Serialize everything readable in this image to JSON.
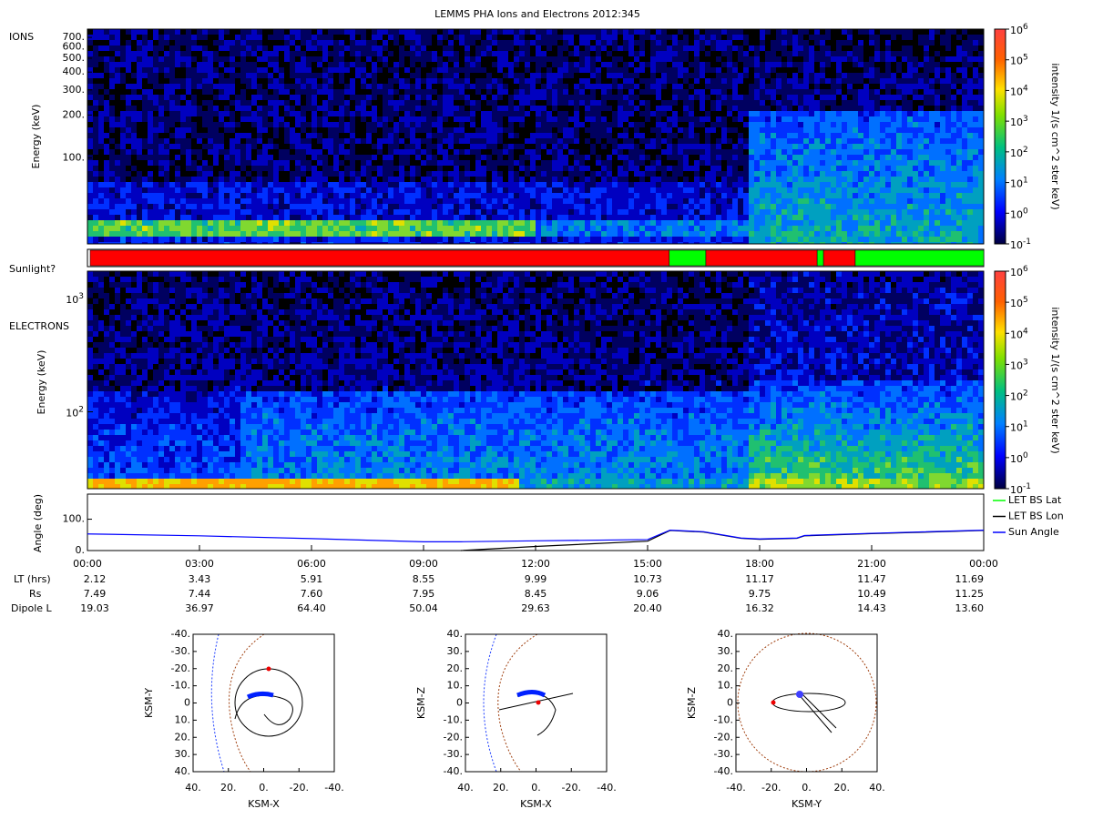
{
  "title": "LEMMS PHA Ions and Electrons  2012:345",
  "ions": {
    "label": "IONS",
    "ylabel": "Energy (keV)",
    "ylim": [
      25,
      800
    ],
    "yticks": [
      {
        "value": 700,
        "label": "700."
      },
      {
        "value": 600,
        "label": "600."
      },
      {
        "value": 500,
        "label": "500."
      },
      {
        "value": 400,
        "label": "400."
      },
      {
        "value": 300,
        "label": "300."
      },
      {
        "value": 200,
        "label": "200."
      },
      {
        "value": 100,
        "label": "100."
      }
    ],
    "colorbar": {
      "label": "intensity 1/(s cm^2 ster keV)",
      "ylim": [
        0.1,
        1000000
      ],
      "ticks": [
        {
          "value": 0.1,
          "base": "10",
          "exp": "-1"
        },
        {
          "value": 1,
          "base": "10",
          "exp": "0"
        },
        {
          "value": 10,
          "base": "10",
          "exp": "1"
        },
        {
          "value": 100,
          "base": "10",
          "exp": "2"
        },
        {
          "value": 1000,
          "base": "10",
          "exp": "3"
        },
        {
          "value": 10000,
          "base": "10",
          "exp": "4"
        },
        {
          "value": 100000,
          "base": "10",
          "exp": "5"
        },
        {
          "value": 1000000,
          "base": "10",
          "exp": "6"
        }
      ]
    }
  },
  "sunlight": {
    "label": "Sunlight?",
    "segments": [
      {
        "start": 0,
        "end": 15.58,
        "color": "#ff0000"
      },
      {
        "start": 15.58,
        "end": 16.56,
        "color": "#00ff00"
      },
      {
        "start": 16.56,
        "end": 19.54,
        "color": "#ff0000"
      },
      {
        "start": 19.54,
        "end": 19.71,
        "color": "#00ff00"
      },
      {
        "start": 19.71,
        "end": 20.56,
        "color": "#ff0000"
      },
      {
        "start": 20.56,
        "end": 24,
        "color": "#00ff00"
      }
    ]
  },
  "electrons": {
    "label": "ELECTRONS",
    "ylabel": "Energy (keV)",
    "ylim": [
      21,
      1740
    ],
    "yticks": [
      {
        "value": 100,
        "base": "10",
        "exp": "2"
      },
      {
        "value": 1000,
        "base": "10",
        "exp": "3"
      }
    ],
    "colorbar": {
      "label": "intensity 1/(s cm^2 ster keV)",
      "ylim": [
        0.1,
        1000000
      ],
      "ticks": [
        {
          "value": 0.1,
          "base": "10",
          "exp": "-1"
        },
        {
          "value": 1,
          "base": "10",
          "exp": "0"
        },
        {
          "value": 10,
          "base": "10",
          "exp": "1"
        },
        {
          "value": 100,
          "base": "10",
          "exp": "2"
        },
        {
          "value": 1000,
          "base": "10",
          "exp": "3"
        },
        {
          "value": 10000,
          "base": "10",
          "exp": "4"
        },
        {
          "value": 100000,
          "base": "10",
          "exp": "5"
        },
        {
          "value": 1000000,
          "base": "10",
          "exp": "6"
        }
      ]
    }
  },
  "angle": {
    "ylabel": "Angle (deg)",
    "ylim": [
      0,
      180
    ],
    "yticks": [
      {
        "value": 0,
        "label": "0."
      },
      {
        "value": 100,
        "label": "100."
      }
    ],
    "x": [
      0,
      3,
      6,
      9,
      10,
      12,
      15,
      15.6,
      16.5,
      17.5,
      18,
      19,
      19.2,
      21,
      24
    ],
    "series": [
      {
        "name": "LET BS Lat",
        "color": "#00ff00",
        "values": [
          null,
          null,
          null,
          null,
          null,
          null,
          null,
          null,
          null,
          null,
          null,
          null,
          null,
          null,
          null
        ]
      },
      {
        "name": "LET BS Lon",
        "color": "#000000",
        "values": [
          null,
          null,
          null,
          null,
          0,
          13,
          30,
          64,
          59,
          39,
          36,
          39,
          47,
          54,
          64
        ]
      },
      {
        "name": "Sun Angle",
        "color": "#0000ff",
        "values": [
          53,
          47,
          38,
          28,
          28,
          31,
          35,
          65,
          60,
          40,
          37,
          40,
          48,
          55,
          65
        ]
      }
    ]
  },
  "xlim": [
    0,
    24
  ],
  "xticks": [
    {
      "value": 0,
      "label": "00:00"
    },
    {
      "value": 3,
      "label": "03:00"
    },
    {
      "value": 6,
      "label": "06:00"
    },
    {
      "value": 9,
      "label": "09:00"
    },
    {
      "value": 12,
      "label": "12:00"
    },
    {
      "value": 15,
      "label": "15:00"
    },
    {
      "value": 18,
      "label": "18:00"
    },
    {
      "value": 21,
      "label": "21:00"
    },
    {
      "value": 24,
      "label": "00:00"
    }
  ],
  "rows": [
    {
      "label": "LT (hrs)",
      "values": [
        "2.12",
        "3.43",
        "5.91",
        "8.55",
        "9.99",
        "10.73",
        "11.17",
        "11.47",
        "11.69"
      ]
    },
    {
      "label": "Rs",
      "values": [
        "7.49",
        "7.44",
        "7.60",
        "7.95",
        "8.45",
        "9.06",
        "9.75",
        "10.49",
        "11.25"
      ]
    },
    {
      "label": "Dipole L",
      "values": [
        "19.03",
        "36.97",
        "64.40",
        "50.04",
        "29.63",
        "20.40",
        "16.32",
        "14.43",
        "13.60"
      ]
    }
  ],
  "orbits": [
    {
      "xlabel": "KSM-X",
      "ylabel": "KSM-Y",
      "xticks": [
        {
          "value": 40,
          "label": "40."
        },
        {
          "value": 20,
          "label": "20."
        },
        {
          "value": 0,
          "label": "0."
        },
        {
          "value": -20,
          "label": "-20."
        },
        {
          "value": -40,
          "label": "-40."
        }
      ],
      "yticks": [
        {
          "value": -40,
          "label": "-40."
        },
        {
          "value": -30,
          "label": "-30."
        },
        {
          "value": -20,
          "label": "-20."
        },
        {
          "value": -10,
          "label": "-10."
        },
        {
          "value": 0,
          "label": "0"
        },
        {
          "value": 10,
          "label": "10."
        },
        {
          "value": 20,
          "label": "20."
        },
        {
          "value": 30,
          "label": "30."
        },
        {
          "value": 40,
          "label": "40."
        }
      ]
    },
    {
      "xlabel": "KSM-X",
      "ylabel": "KSM-Z",
      "xticks": [
        {
          "value": 40,
          "label": "40."
        },
        {
          "value": 20,
          "label": "20."
        },
        {
          "value": 0,
          "label": "0."
        },
        {
          "value": -20,
          "label": "-20."
        },
        {
          "value": -40,
          "label": "-40."
        }
      ],
      "yticks": [
        {
          "value": 40,
          "label": "40."
        },
        {
          "value": 30,
          "label": "30."
        },
        {
          "value": 20,
          "label": "20."
        },
        {
          "value": 10,
          "label": "10."
        },
        {
          "value": 0,
          "label": "0"
        },
        {
          "value": -10,
          "label": "-10."
        },
        {
          "value": -20,
          "label": "-20."
        },
        {
          "value": -30,
          "label": "-30."
        },
        {
          "value": -40,
          "label": "-40."
        }
      ]
    },
    {
      "xlabel": "KSM-Y",
      "ylabel": "KSM-Z",
      "xticks": [
        {
          "value": -40,
          "label": "-40."
        },
        {
          "value": -20,
          "label": "-20."
        },
        {
          "value": 0,
          "label": "0."
        },
        {
          "value": 20,
          "label": "20."
        },
        {
          "value": 40,
          "label": "40."
        }
      ],
      "yticks": [
        {
          "value": 40,
          "label": "40."
        },
        {
          "value": 30,
          "label": "30."
        },
        {
          "value": 20,
          "label": "20."
        },
        {
          "value": 10,
          "label": "10."
        },
        {
          "value": 0,
          "label": "0"
        },
        {
          "value": -10,
          "label": "-10."
        },
        {
          "value": -20,
          "label": "-20."
        },
        {
          "value": -30,
          "label": "-30."
        },
        {
          "value": -40,
          "label": "-40."
        }
      ]
    }
  ]
}
